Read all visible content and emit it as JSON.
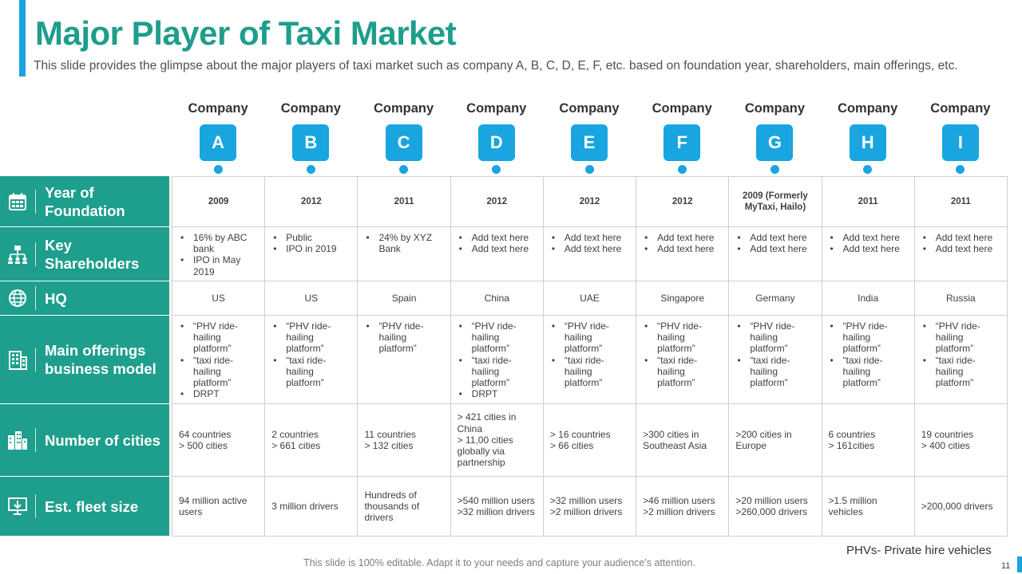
{
  "header": {
    "title": "Major Player of Taxi Market",
    "subtitle": "This slide provides the glimpse about the major players of taxi market such as company A, B, C, D, E, F, etc. based on foundation year, shareholders, main offerings, etc."
  },
  "company_label": "Company",
  "companies": [
    {
      "letter": "A",
      "year": "2009",
      "shareholders": [
        "16% by ABC bank",
        "IPO in May 2019"
      ],
      "hq": "US",
      "offerings": [
        "“PHV ride-hailing platform”",
        "“taxi ride-hailing platform”",
        "DRPT"
      ],
      "cities": [
        "64 countries",
        "> 500 cities"
      ],
      "fleet": [
        "94 million active users"
      ]
    },
    {
      "letter": "B",
      "year": "2012",
      "shareholders": [
        "Public",
        "IPO in 2019"
      ],
      "hq": "US",
      "offerings": [
        "“PHV ride-hailing platform”",
        "“taxi ride-hailing platform”"
      ],
      "cities": [
        "2 countries",
        "> 661 cities"
      ],
      "fleet": [
        "3 million drivers"
      ]
    },
    {
      "letter": "C",
      "year": "2011",
      "shareholders": [
        "24% by XYZ Bank"
      ],
      "hq": "Spain",
      "offerings": [
        "“PHV ride-hailing platform”"
      ],
      "cities": [
        "11 countries",
        "> 132 cities"
      ],
      "fleet": [
        "Hundreds of thousands of drivers"
      ]
    },
    {
      "letter": "D",
      "year": "2012",
      "shareholders": [
        "Add text here",
        "Add text here"
      ],
      "hq": "China",
      "offerings": [
        "“PHV ride-hailing platform”",
        "“taxi ride-hailing platform”",
        "DRPT"
      ],
      "cities": [
        "> 421 cities in China",
        "> 11,00 cities globally via partnership"
      ],
      "fleet": [
        ">540 million users",
        ">32 million drivers"
      ]
    },
    {
      "letter": "E",
      "year": "2012",
      "shareholders": [
        "Add text here",
        "Add text here"
      ],
      "hq": "UAE",
      "offerings": [
        "“PHV ride-hailing platform”",
        "“taxi ride-hailing platform”"
      ],
      "cities": [
        "> 16 countries",
        "> 66 cities"
      ],
      "fleet": [
        ">32 million users",
        ">2 million drivers"
      ]
    },
    {
      "letter": "F",
      "year": "2012",
      "shareholders": [
        "Add text here",
        "Add text here"
      ],
      "hq": "Singapore",
      "offerings": [
        "“PHV ride-hailing platform”",
        "“taxi ride-hailing platform”"
      ],
      "cities": [
        ">300 cities in Southeast Asia"
      ],
      "fleet": [
        ">46 million users",
        ">2 million drivers"
      ]
    },
    {
      "letter": "G",
      "year": "2009 (Formerly MyTaxi, Hailo)",
      "shareholders": [
        "Add text here",
        "Add text here"
      ],
      "hq": "Germany",
      "offerings": [
        "“PHV ride-hailing platform”",
        "“taxi ride-hailing platform”"
      ],
      "cities": [
        ">200 cities in Europe"
      ],
      "fleet": [
        ">20 million users",
        ">260,000 drivers"
      ]
    },
    {
      "letter": "H",
      "year": "2011",
      "shareholders": [
        "Add text here",
        "Add text here"
      ],
      "hq": "India",
      "offerings": [
        "“PHV ride-hailing platform”",
        "“taxi ride-hailing platform”"
      ],
      "cities": [
        "6 countries",
        "> 161cities"
      ],
      "fleet": [
        ">1.5 million vehicles"
      ]
    },
    {
      "letter": "I",
      "year": "2011",
      "shareholders": [
        "Add text here",
        "Add text here"
      ],
      "hq": "Russia",
      "offerings": [
        "“PHV ride-hailing platform”",
        "“taxi ride-hailing platform”"
      ],
      "cities": [
        "19 countries",
        "> 400 cities"
      ],
      "fleet": [
        ">200,000 drivers"
      ]
    }
  ],
  "row_labels": {
    "year": "Year of Foundation",
    "shareholders": "Key Shareholders",
    "hq": "HQ",
    "offerings": "Main offerings business model",
    "cities": "Number of cities",
    "fleet": "Est. fleet size"
  },
  "footnote": "PHVs- Private hire vehicles",
  "footer": "This slide is 100% editable. Adapt it to your needs and capture your audience's attention.",
  "page_number": "11"
}
